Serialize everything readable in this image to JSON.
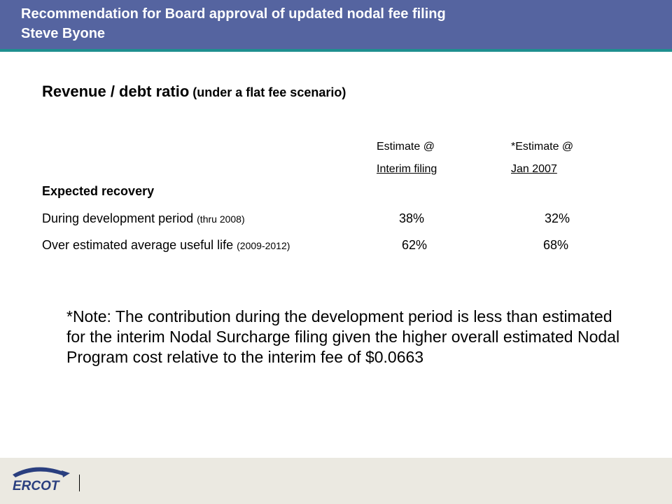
{
  "header": {
    "title_line1": "Recommendation for Board approval of updated nodal fee filing",
    "title_line2": "Steve Byone"
  },
  "slide": {
    "title_main": "Revenue / debt ratio",
    "title_sub": " (under a flat fee scenario)",
    "columns": [
      {
        "line1": "Estimate @",
        "line2": "Interim filing"
      },
      {
        "line1": "*Estimate @",
        "line2": "Jan 2007"
      }
    ],
    "section_heading": "Expected recovery",
    "rows": [
      {
        "label": "During development period ",
        "qualifier": "(thru 2008)",
        "values": [
          "38%",
          "32%"
        ]
      },
      {
        "label": "Over estimated average useful life ",
        "qualifier": "(2009-2012)",
        "values": [
          "62%",
          "68%"
        ]
      }
    ],
    "note": "*Note: The contribution during the development period is less than estimated for the interim Nodal Surcharge filing given the higher overall estimated Nodal Program cost relative to the interim fee of $0.0663"
  },
  "footer": {
    "logo_text": "ERCOT",
    "logo_name": "ercot-logo-icon",
    "colors": {
      "header": "#5564a0",
      "rule": "#1f8f8f",
      "footer": "#ebe9e1",
      "logo": "#2a3f7f"
    }
  }
}
